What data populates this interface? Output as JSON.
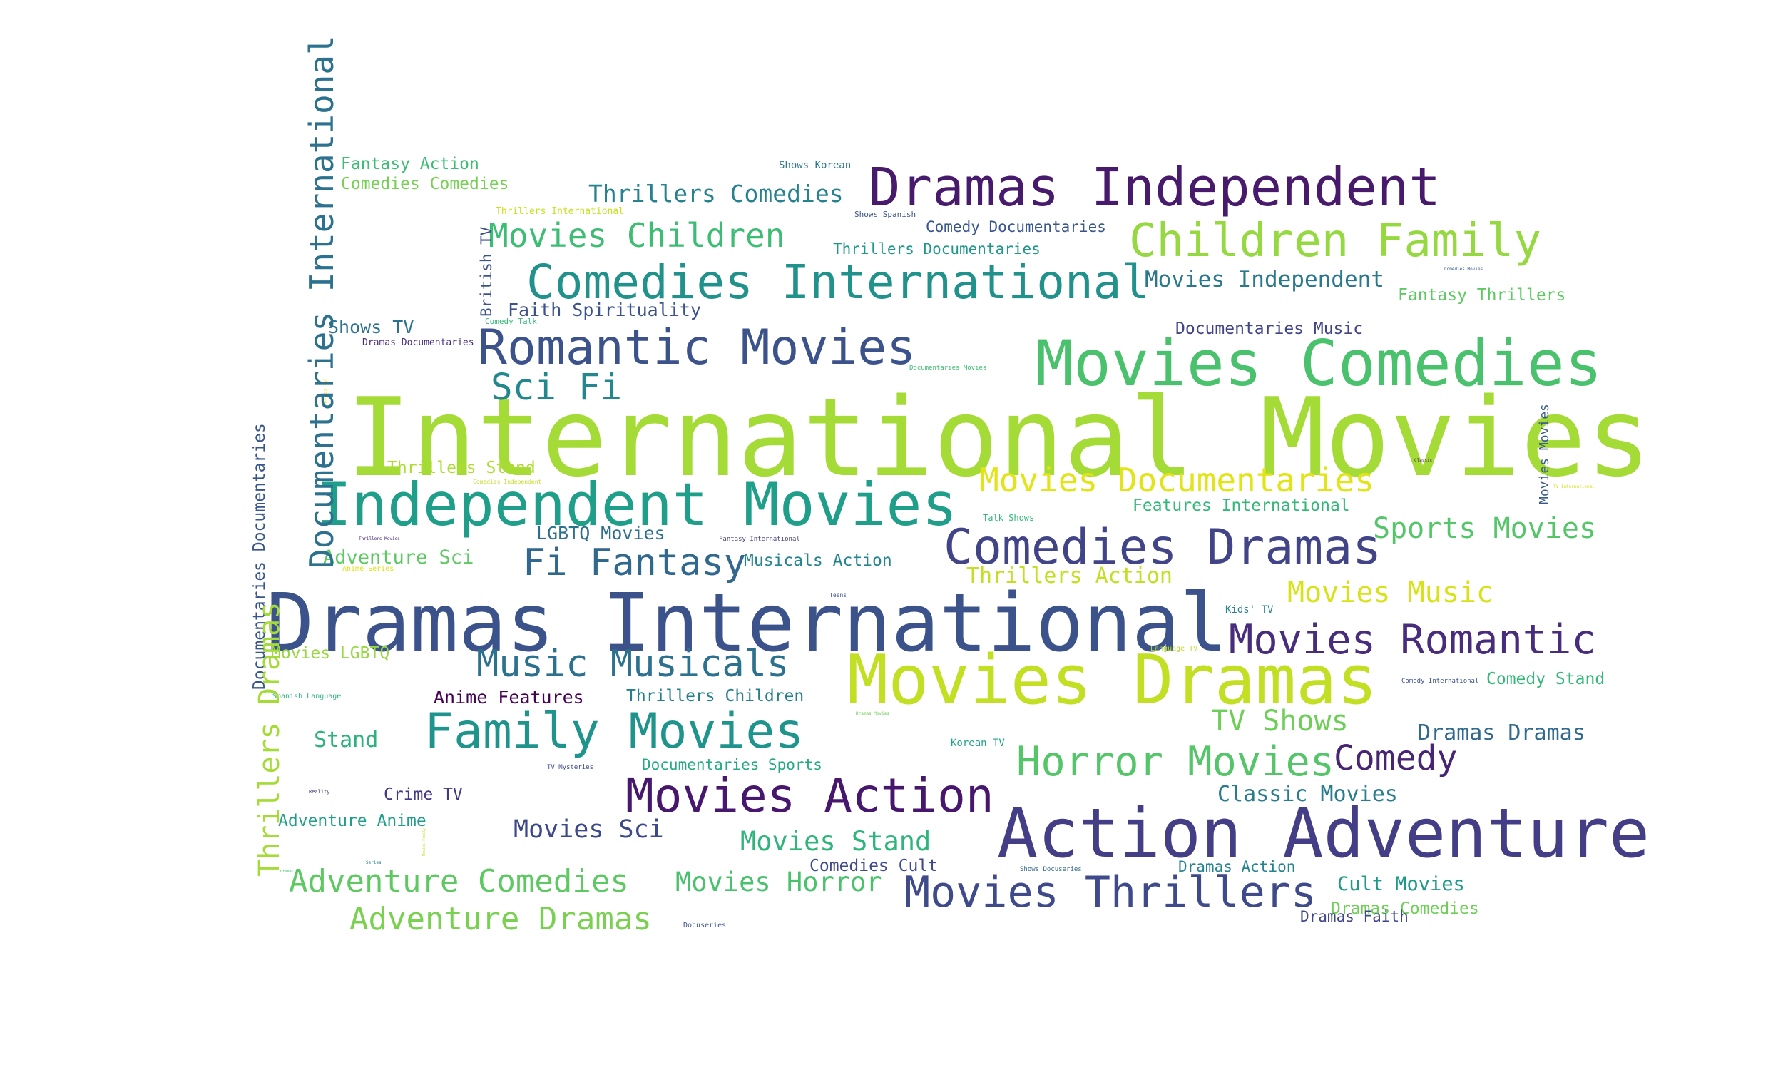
{
  "words": [
    {
      "text": "International Movies",
      "color": "#a5db36"
    },
    {
      "text": "Dramas International",
      "color": "#3b528b"
    },
    {
      "text": "Movies Dramas",
      "color": "#c2df23"
    },
    {
      "text": "Action Adventure",
      "color": "#433e85"
    },
    {
      "text": "Independent Movies",
      "color": "#1f9e89"
    },
    {
      "text": "Movies Comedies",
      "color": "#4ac16d"
    },
    {
      "text": "Dramas Independent",
      "color": "#481a6c"
    },
    {
      "text": "Comedies International",
      "color": "#21918c"
    },
    {
      "text": "Romantic Movies",
      "color": "#3b528b"
    },
    {
      "text": "Comedies Dramas",
      "color": "#414487"
    },
    {
      "text": "Children Family",
      "color": "#95d840"
    },
    {
      "text": "Family Movies",
      "color": "#1f948c"
    },
    {
      "text": "Movies Action",
      "color": "#46176d"
    },
    {
      "text": "Movies Thrillers",
      "color": "#3e4a89"
    },
    {
      "text": "Horror Movies",
      "color": "#54c568"
    },
    {
      "text": "Movies Romantic",
      "color": "#472d7b"
    },
    {
      "text": "Movies Documentaries",
      "color": "#e2e418"
    },
    {
      "text": "Music Musicals",
      "color": "#2c728e"
    },
    {
      "text": "Fi Fantasy",
      "color": "#31688e"
    },
    {
      "text": "Sci Fi",
      "color": "#23888e"
    },
    {
      "text": "Adventure Comedies",
      "color": "#5ec962"
    },
    {
      "text": "Adventure Dramas",
      "color": "#7ad151"
    },
    {
      "text": "Movies Children",
      "color": "#3dbc74"
    },
    {
      "text": "Comedy",
      "color": "#482475"
    },
    {
      "text": "Sports Movies",
      "color": "#54c568"
    },
    {
      "text": "Movies Music",
      "color": "#d8e219"
    },
    {
      "text": "TV Shows",
      "color": "#6ece58"
    },
    {
      "text": "Movies Horror",
      "color": "#4ac16d"
    },
    {
      "text": "Movies Stand",
      "color": "#2fb47c"
    },
    {
      "text": "Movies Sci",
      "color": "#3e4989"
    },
    {
      "text": "Thrillers Comedies",
      "color": "#26828e"
    },
    {
      "text": "Movies Independent",
      "color": "#2a788e"
    },
    {
      "text": "Thrillers Action",
      "color": "#c2df23"
    },
    {
      "text": "Dramas Dramas",
      "color": "#306a8e"
    },
    {
      "text": "Classic Movies",
      "color": "#297b8e"
    },
    {
      "text": "Stand",
      "color": "#2db27d"
    },
    {
      "text": "Cult Movies",
      "color": "#1f9a8a"
    },
    {
      "text": "Adventure Sci",
      "color": "#5ec962"
    },
    {
      "text": "Thrillers Stand",
      "color": "#addc30"
    },
    {
      "text": "Fantasy Thrillers",
      "color": "#5ec962"
    },
    {
      "text": "Anime Features",
      "color": "#440154"
    },
    {
      "text": "Features International",
      "color": "#35b779"
    },
    {
      "text": "Faith Spirituality",
      "color": "#3b528b"
    },
    {
      "text": "Movies LGBTQ",
      "color": "#95d840"
    },
    {
      "text": "Thrillers Children",
      "color": "#277f8e"
    },
    {
      "text": "Documentaries Sports",
      "color": "#25ab82"
    },
    {
      "text": "Musicals Action",
      "color": "#25858e"
    },
    {
      "text": "LGBTQ Movies",
      "color": "#2d708e"
    },
    {
      "text": "Adventure Anime",
      "color": "#1f9e89"
    },
    {
      "text": "Shows TV",
      "color": "#2c728e"
    },
    {
      "text": "Comedy Stand",
      "color": "#35b779"
    },
    {
      "text": "Documentaries Music",
      "color": "#414487"
    },
    {
      "text": "Comedy Documentaries",
      "color": "#39568c"
    },
    {
      "text": "Thrillers Documentaries",
      "color": "#1f988b"
    },
    {
      "text": "Fantasy Action",
      "color": "#3dbc74"
    },
    {
      "text": "Comedies Comedies",
      "color": "#75d054"
    },
    {
      "text": "Crime TV",
      "color": "#453882"
    },
    {
      "text": "Dramas Comedies",
      "color": "#6ece58"
    },
    {
      "text": "Dramas Action",
      "color": "#25848e"
    },
    {
      "text": "Comedies Cult",
      "color": "#3e4a89"
    },
    {
      "text": "Dramas Faith",
      "color": "#3f4788"
    },
    {
      "text": "Shows Korean",
      "color": "#2a788e"
    },
    {
      "text": "Thrillers International",
      "color": "#c8e020"
    },
    {
      "text": "Shows Spanish",
      "color": "#3b528b"
    },
    {
      "text": "Dramas Documentaries",
      "color": "#472c7a"
    },
    {
      "text": "Comedy Talk",
      "color": "#35b779"
    },
    {
      "text": "Korean TV",
      "color": "#20a486"
    },
    {
      "text": "Kids' TV",
      "color": "#26828e"
    },
    {
      "text": "Talk Shows",
      "color": "#35b779"
    },
    {
      "text": "Fantasy International",
      "color": "#433e85"
    },
    {
      "text": "Spanish Language",
      "color": "#2db27d"
    },
    {
      "text": "Anime Series",
      "color": "#dde318"
    },
    {
      "text": "Documentaries Movies",
      "color": "#3dbc74"
    },
    {
      "text": "Language TV",
      "color": "#b8de29"
    },
    {
      "text": "Comedy International",
      "color": "#3b528b"
    },
    {
      "text": "Comedies Movies",
      "color": "#38598c"
    },
    {
      "text": "TV Mysteries",
      "color": "#3e4989"
    },
    {
      "text": "Shows Docuseries",
      "color": "#31688e"
    },
    {
      "text": "Docuseries",
      "color": "#3b528b"
    },
    {
      "text": "Thrillers Movies",
      "color": "#482173"
    },
    {
      "text": "Comedies Independent",
      "color": "#c0df25"
    },
    {
      "text": "TV International",
      "color": "#d2e21b"
    },
    {
      "text": "Dramas Movies",
      "color": "#6ece58"
    },
    {
      "text": "Teens",
      "color": "#3b528b"
    },
    {
      "text": "Reality",
      "color": "#46337e"
    },
    {
      "text": "Series",
      "color": "#2a788e"
    },
    {
      "text": "Movies TV",
      "color": "#fde725"
    },
    {
      "text": "Classic",
      "color": "#481a6c"
    },
    {
      "text": "Movies Family",
      "color": "#c8e020"
    },
    {
      "text": "Dramas TV",
      "color": "#3dbc74"
    },
    {
      "text": "Documentaries International",
      "color": "#2c728e"
    },
    {
      "text": "Documentaries Documentaries",
      "color": "#39568c"
    },
    {
      "text": "Thrillers Dramas",
      "color": "#a5db36"
    },
    {
      "text": "British TV",
      "color": "#3b528b"
    },
    {
      "text": "Movies Movies",
      "color": "#38598c"
    }
  ]
}
